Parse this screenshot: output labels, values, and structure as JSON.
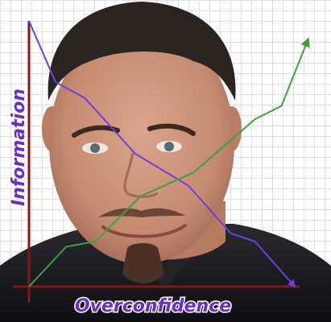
{
  "chart_data": {
    "type": "line",
    "title": "",
    "xlabel": "Overconfidence",
    "ylabel": "Information",
    "xlim": [
      0,
      10
    ],
    "ylim": [
      0,
      10
    ],
    "grid": true,
    "series": [
      {
        "name": "Information",
        "color": "#6d3fe0",
        "x": [
          0,
          1.0,
          2.1,
          4.0,
          6.0,
          7.6,
          8.5,
          10
        ],
        "y": [
          10,
          7.7,
          7.1,
          5.0,
          3.8,
          2.0,
          1.7,
          0
        ]
      },
      {
        "name": "Overconfidence",
        "color": "#3ea23a",
        "x": [
          0,
          1.4,
          2.5,
          4.2,
          6.2,
          8.5,
          9.5,
          10.5
        ],
        "y": [
          0,
          1.5,
          1.7,
          3.4,
          4.3,
          6.3,
          6.8,
          9.3
        ]
      }
    ],
    "axis_color": "#7a1a1a"
  },
  "image": {
    "subject": "portrait-photo",
    "skin": "#c98f74",
    "hair": "#2b2420",
    "shirt": "#1a1a1e"
  }
}
